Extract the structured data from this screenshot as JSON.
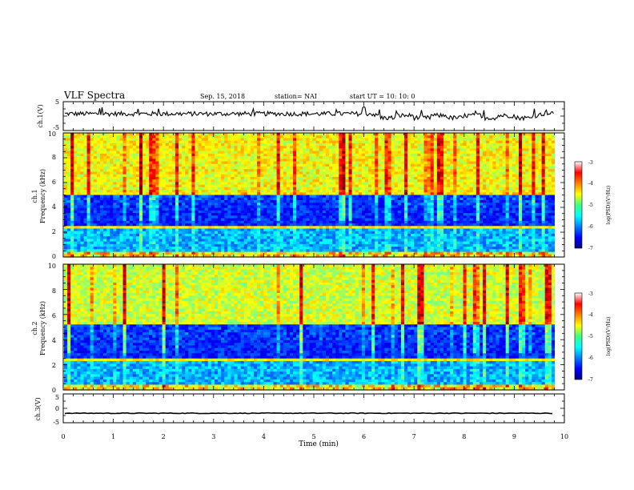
{
  "header": {
    "title": "VLF Spectra",
    "date": "Sep. 15, 2018",
    "station": "station= NAI",
    "start": "start  UT  =   10: 10: 0"
  },
  "chart_data": [
    {
      "id": "ch1_waveform",
      "type": "line",
      "ylabel": "ch.1(V)",
      "ylim": [
        -5,
        5
      ],
      "yticks": [
        "5",
        "-5"
      ],
      "description_values": "amplitude ~0.5 to 1.5 V, dips to ~-1 V between 6.2 and 9.5 min"
    },
    {
      "id": "ch1_spectrogram",
      "type": "heatmap",
      "ylabel_top": "ch.1",
      "ylabel": "Frequency (kHz)",
      "ylim": [
        0,
        10
      ],
      "yticks": [
        "0",
        "2",
        "4",
        "6",
        "8",
        "10"
      ],
      "colorbar": {
        "label": "log(PSD)(V²/Hz)",
        "range": [
          -7,
          -3
        ],
        "ticks": [
          "-3",
          "-4",
          "-5",
          "-6",
          "-7"
        ]
      }
    },
    {
      "id": "ch2_spectrogram",
      "type": "heatmap",
      "ylabel_top": "ch.2",
      "ylabel": "Frequency (kHz)",
      "ylim": [
        0,
        10
      ],
      "yticks": [
        "0",
        "2",
        "4",
        "6",
        "8",
        "10"
      ],
      "colorbar": {
        "label": "log(PSD)(V²/Hz)",
        "range": [
          -7,
          -3
        ],
        "ticks": [
          "-3",
          "-4",
          "-5",
          "-6",
          "-7"
        ]
      }
    },
    {
      "id": "ch3_waveform",
      "type": "line",
      "ylabel": "ch.3(V)",
      "ylim": [
        -5,
        5
      ],
      "yticks": [
        "5",
        "0",
        "-5"
      ],
      "description_values": "flat trace at about -1.7 V"
    }
  ],
  "xaxis": {
    "label": "Time (min)",
    "ticks": [
      "0",
      "1",
      "2",
      "3",
      "4",
      "5",
      "6",
      "7",
      "8",
      "9",
      "10"
    ],
    "range": [
      0,
      10
    ]
  }
}
